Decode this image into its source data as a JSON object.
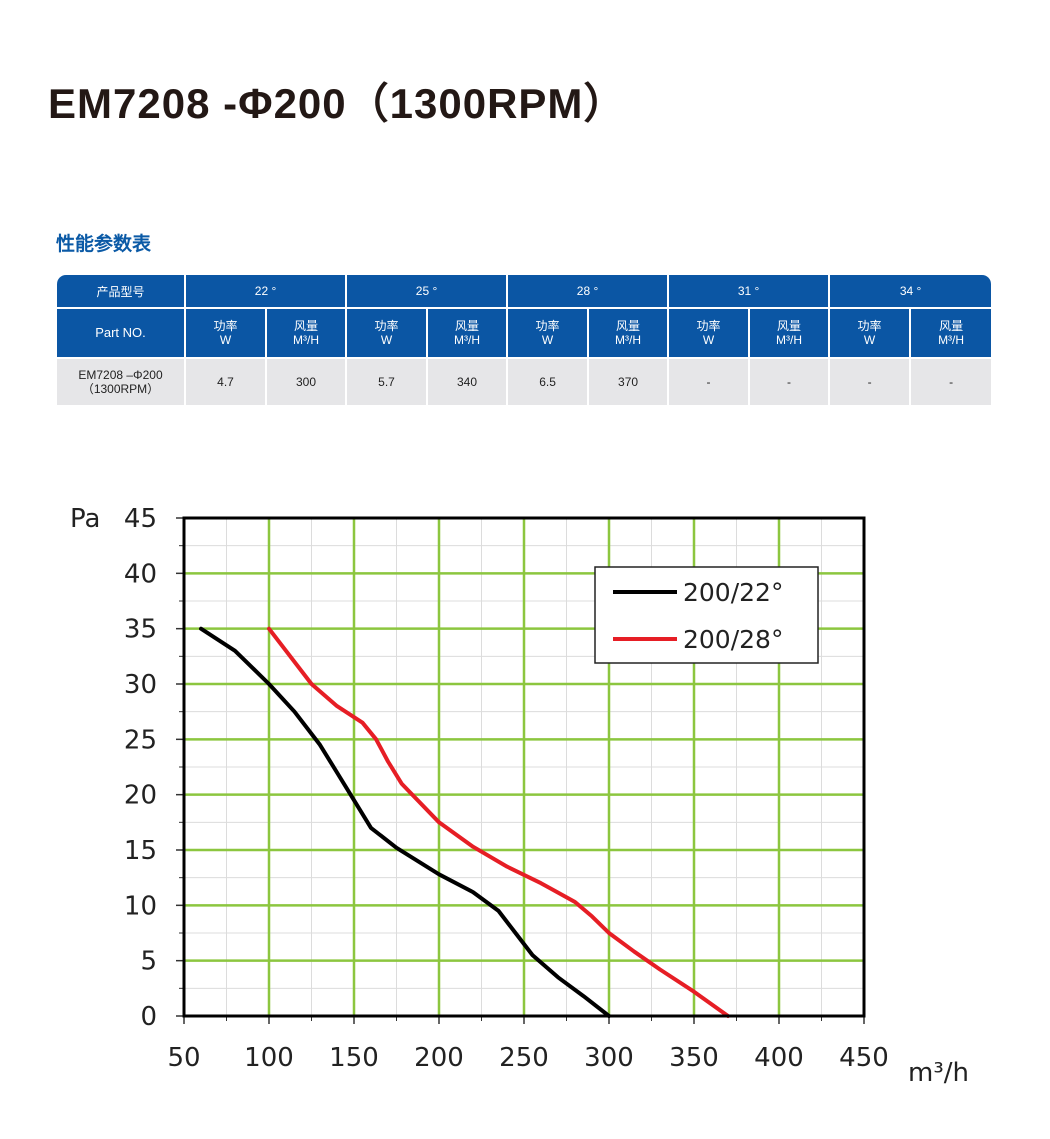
{
  "page": {
    "title": "EM7208 -Φ200（1300RPM）",
    "section_title": "性能参数表"
  },
  "table": {
    "header_model": "产品型号",
    "header_partno": "Part NO.",
    "angles": [
      "22 °",
      "25 °",
      "28 °",
      "31 °",
      "34 °"
    ],
    "power_label": "功率",
    "power_unit": "W",
    "flow_label": "风量",
    "flow_unit": "M³/H",
    "row": {
      "model_line1": "EM7208 –Φ200",
      "model_line2": "（1300RPM）",
      "values": [
        "4.7",
        "300",
        "5.7",
        "340",
        "6.5",
        "370",
        "-",
        "-",
        "-",
        "-"
      ]
    },
    "colors": {
      "header_bg": "#0b56a4",
      "row_bg": "#e6e6e8"
    }
  },
  "chart_data": {
    "type": "line",
    "ylabel": "Pa",
    "xlabel": "m³/h",
    "xlim": [
      50,
      450
    ],
    "ylim": [
      0,
      45
    ],
    "x_ticks": [
      50,
      100,
      150,
      200,
      250,
      300,
      350,
      400,
      450
    ],
    "y_ticks": [
      0,
      5,
      10,
      15,
      20,
      25,
      30,
      35,
      40,
      45
    ],
    "grid": true,
    "grid_color": "#8cc63f",
    "legend_position": "top-right",
    "series": [
      {
        "name": "200/22°",
        "color": "#000000",
        "points": [
          [
            60,
            35
          ],
          [
            80,
            33
          ],
          [
            100,
            30
          ],
          [
            115,
            27.5
          ],
          [
            130,
            24.5
          ],
          [
            140,
            22
          ],
          [
            150,
            19.5
          ],
          [
            160,
            17
          ],
          [
            175,
            15.2
          ],
          [
            200,
            12.8
          ],
          [
            220,
            11.2
          ],
          [
            235,
            9.5
          ],
          [
            245,
            7.5
          ],
          [
            255,
            5.5
          ],
          [
            270,
            3.5
          ],
          [
            285,
            1.8
          ],
          [
            300,
            0
          ]
        ]
      },
      {
        "name": "200/28°",
        "color": "#e61e25",
        "points": [
          [
            100,
            35
          ],
          [
            110,
            33
          ],
          [
            125,
            30
          ],
          [
            140,
            28
          ],
          [
            155,
            26.5
          ],
          [
            163,
            25
          ],
          [
            170,
            23
          ],
          [
            178,
            21
          ],
          [
            200,
            17.5
          ],
          [
            220,
            15.3
          ],
          [
            240,
            13.5
          ],
          [
            260,
            12
          ],
          [
            280,
            10.3
          ],
          [
            290,
            9
          ],
          [
            300,
            7.5
          ],
          [
            315,
            5.8
          ],
          [
            330,
            4.2
          ],
          [
            350,
            2.2
          ],
          [
            370,
            0
          ]
        ]
      }
    ]
  }
}
